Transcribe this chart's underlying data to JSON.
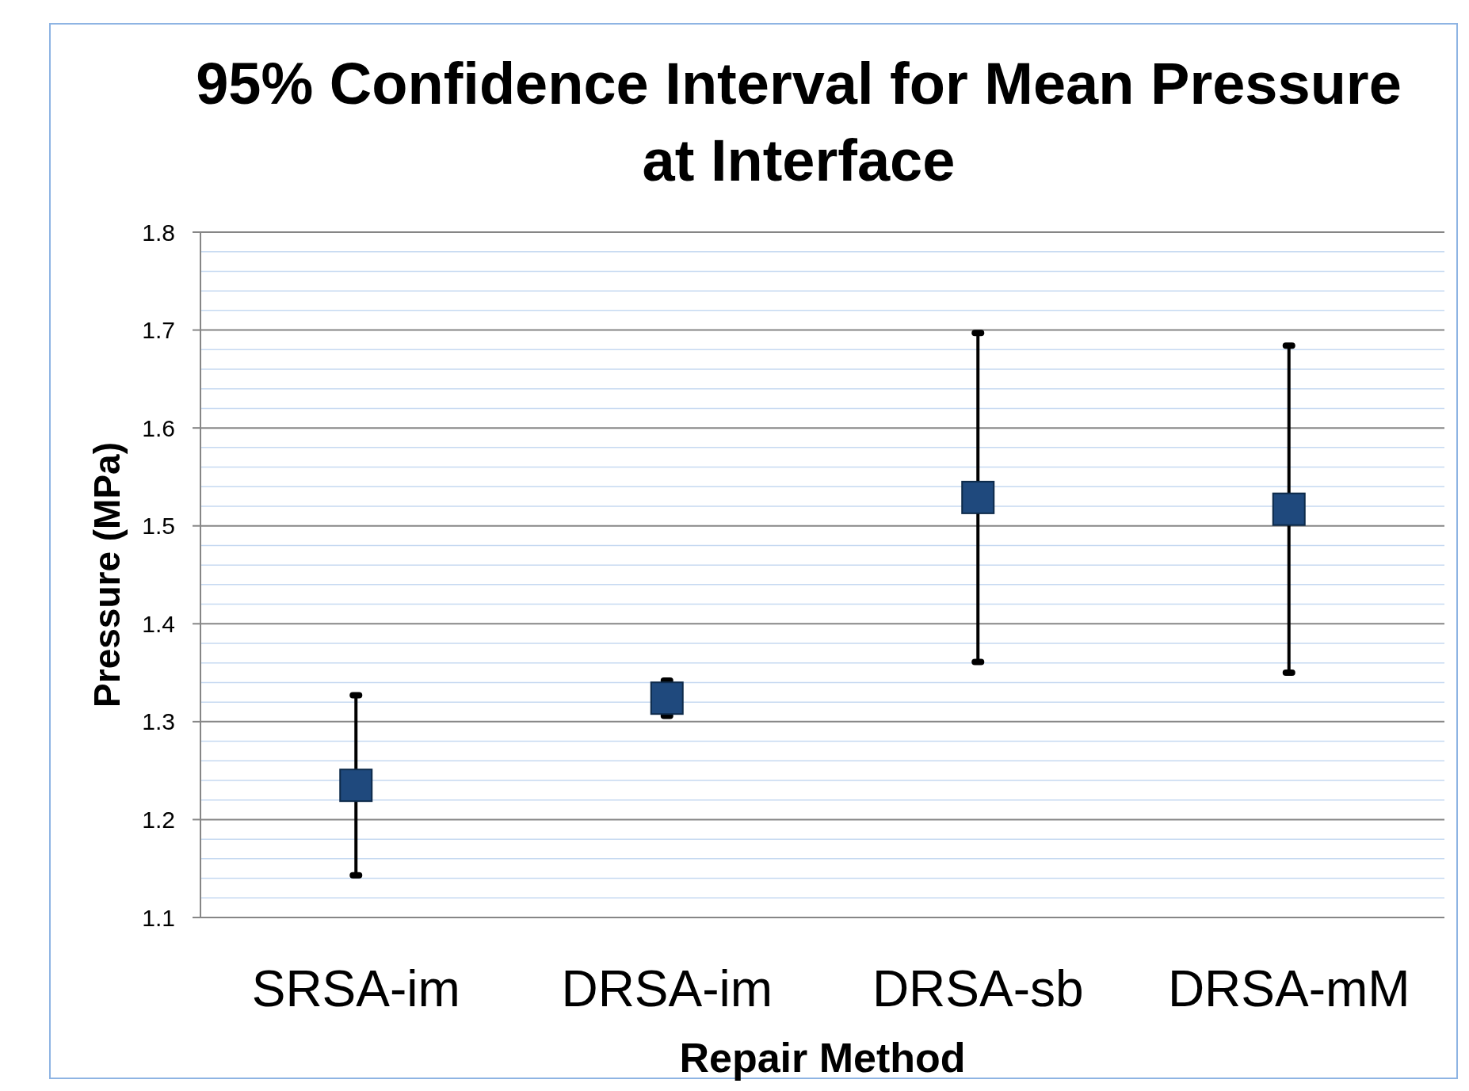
{
  "chart_data": {
    "type": "scatter",
    "title": "95% Confidence Interval for Mean Pressure at Interface",
    "xlabel": "Repair Method",
    "ylabel": "Pressure (MPa)",
    "categories": [
      "SRSA-im",
      "DRSA-im",
      "DRSA-sb",
      "DRSA-mM"
    ],
    "values": [
      1.235,
      1.324,
      1.529,
      1.517
    ],
    "errors": [
      0.092,
      0.018,
      0.168,
      0.167
    ],
    "color": "#1f497d",
    "marker": "square",
    "ylim": [
      1.1,
      1.8
    ],
    "yticks": [
      1.1,
      {
        "value": 1.12,
        "label": null
      },
      {
        "value": 1.14,
        "label": null
      },
      {
        "value": 1.16,
        "label": null
      },
      {
        "value": 1.18,
        "label": null
      },
      1.2,
      {
        "value": 1.22,
        "label": null
      },
      {
        "value": 1.24,
        "label": null
      },
      {
        "value": 1.26,
        "label": null
      },
      {
        "value": 1.28,
        "label": null
      },
      1.3,
      {
        "value": 1.32,
        "label": null
      },
      {
        "value": 1.34,
        "label": null
      },
      {
        "value": 1.36,
        "label": null
      },
      {
        "value": 1.38,
        "label": null
      },
      1.4,
      {
        "value": 1.42,
        "label": null
      },
      {
        "value": 1.44,
        "label": null
      },
      {
        "value": 1.46,
        "label": null
      },
      {
        "value": 1.48,
        "label": null
      },
      1.5,
      {
        "value": 1.52,
        "label": null
      },
      {
        "value": 1.54,
        "label": null
      },
      {
        "value": 1.56,
        "label": null
      },
      {
        "value": 1.58,
        "label": null
      },
      1.6,
      {
        "value": 1.62,
        "label": null
      },
      {
        "value": 1.64,
        "label": null
      },
      {
        "value": 1.66,
        "label": null
      },
      {
        "value": 1.68,
        "label": null
      },
      1.7,
      {
        "value": 1.72,
        "label": null
      },
      {
        "value": 1.74,
        "label": null
      },
      {
        "value": 1.76,
        "label": null
      },
      {
        "value": 1.78,
        "label": null
      },
      1.8
    ],
    "grid": true
  }
}
